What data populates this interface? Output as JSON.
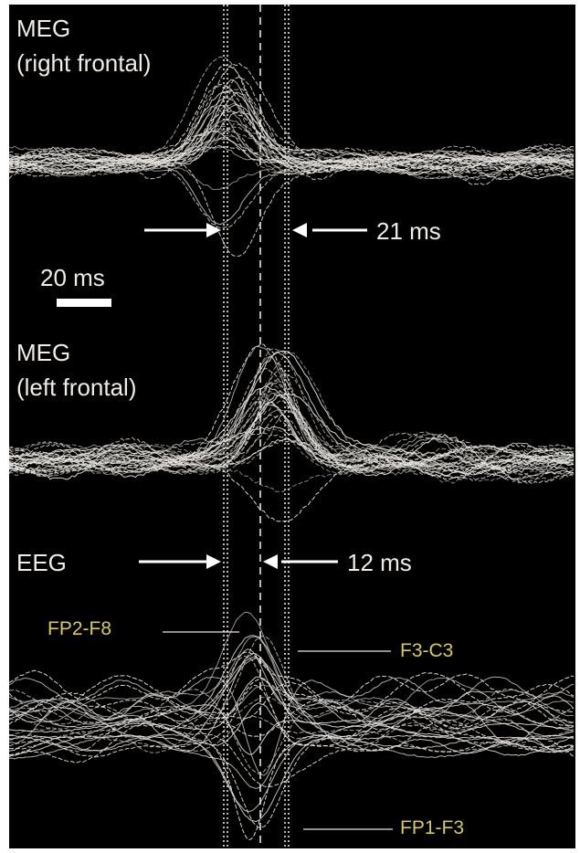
{
  "panels": {
    "meg_right": {
      "line1": "MEG",
      "line2": "(right frontal)"
    },
    "meg_left": {
      "line1": "MEG",
      "line2": "(left frontal)"
    },
    "eeg": {
      "label": "EEG"
    }
  },
  "intervals": {
    "meg_delay": "21 ms",
    "eeg_delay": "12 ms"
  },
  "scale_bar": {
    "label": "20 ms",
    "duration_ms": 20
  },
  "channels": {
    "fp2_f8": "FP2-F8",
    "f3_c3": "F3-C3",
    "fp1_f3": "FP1-F3"
  },
  "colors": {
    "background": "#000000",
    "traces": "#e8e4df",
    "text": "#f0ece6",
    "channel_labels": "#d8c85a"
  }
}
